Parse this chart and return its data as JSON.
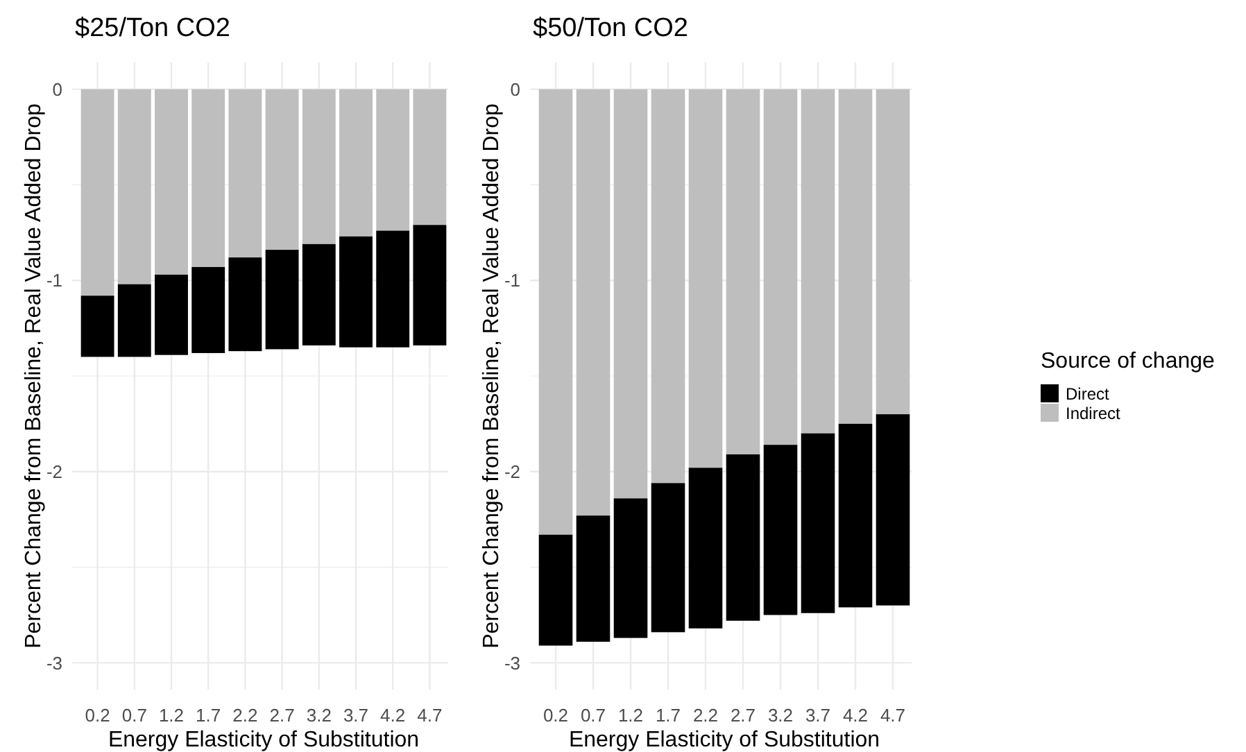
{
  "chart_data": [
    {
      "type": "bar",
      "stacked": true,
      "title": "$25/Ton CO2",
      "xlabel": "Energy Elasticity of Substitution",
      "ylabel": "Percent Change from Baseline, Real Value Added Drop",
      "categories": [
        "0.2",
        "0.7",
        "1.2",
        "1.7",
        "2.2",
        "2.7",
        "3.2",
        "3.7",
        "4.2",
        "4.7"
      ],
      "series": [
        {
          "color": "#bebebe",
          "values": [
            -1.08,
            -1.02,
            -0.97,
            -0.93,
            -0.88,
            -0.84,
            -0.81,
            -0.77,
            -0.74,
            -0.71
          ]
        },
        {
          "color": "#000000",
          "values": [
            -0.32,
            -0.38,
            -0.42,
            -0.45,
            -0.49,
            -0.52,
            -0.53,
            -0.58,
            -0.61,
            -0.63
          ]
        }
      ],
      "ylim": [
        -3.14,
        0.14
      ],
      "yticks": [
        0,
        {
          "value": -0.5,
          "label": null
        },
        -1,
        {
          "value": -1.5,
          "label": null
        },
        -2,
        {
          "value": -2.5,
          "label": null
        },
        -3
      ],
      "grid": true,
      "legend": false
    },
    {
      "type": "bar",
      "stacked": true,
      "title": "$50/Ton CO2",
      "xlabel": "Energy Elasticity of Substitution",
      "ylabel": "Percent Change from Baseline, Real Value Added Drop",
      "legend_title": "Source of change",
      "categories": [
        "0.2",
        "0.7",
        "1.2",
        "1.7",
        "2.2",
        "2.7",
        "3.2",
        "3.7",
        "4.2",
        "4.7"
      ],
      "series": [
        {
          "name": "Indirect",
          "color": "#bebebe",
          "values": [
            -2.33,
            -2.23,
            -2.14,
            -2.06,
            -1.98,
            -1.91,
            -1.86,
            -1.8,
            -1.75,
            -1.7
          ]
        },
        {
          "name": "Direct",
          "color": "#000000",
          "values": [
            -0.58,
            -0.66,
            -0.73,
            -0.78,
            -0.84,
            -0.87,
            -0.89,
            -0.94,
            -0.96,
            -1.0
          ]
        }
      ],
      "ylim": [
        -3.14,
        0.14
      ],
      "yticks": [
        0,
        {
          "value": -0.5,
          "label": null
        },
        -1,
        {
          "value": -1.5,
          "label": null
        },
        -2,
        {
          "value": -2.5,
          "label": null
        },
        -3
      ],
      "grid": true,
      "legend": "right"
    }
  ]
}
